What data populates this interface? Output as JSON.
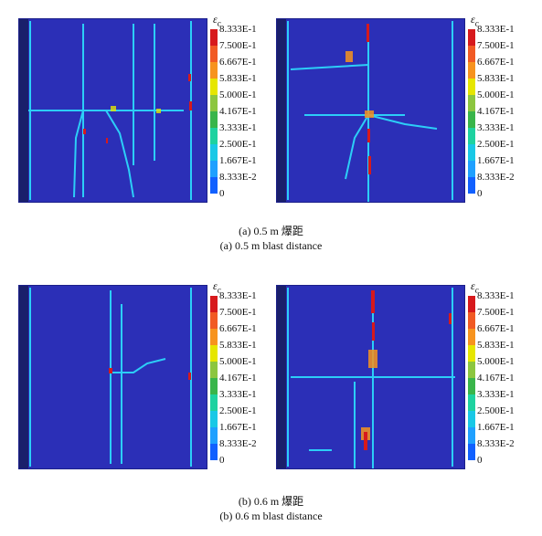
{
  "legend": {
    "symbol": "ε",
    "symbol_sub": "c",
    "labels": [
      "8.333E-1",
      "7.500E-1",
      "6.667E-1",
      "5.833E-1",
      "5.000E-1",
      "4.167E-1",
      "3.333E-1",
      "2.500E-1",
      "1.667E-1",
      "8.333E-2",
      "0"
    ],
    "colors": [
      "#d7191c",
      "#f15a24",
      "#f7931e",
      "#e6e600",
      "#8cc63f",
      "#39b54a",
      "#1ed2a0",
      "#19c8e6",
      "#1fa0ff",
      "#1160ff"
    ]
  },
  "captions": {
    "a_cn": "(a) 0.5 m 爆距",
    "a_en": "(a) 0.5 m blast distance",
    "b_cn": "(b) 0.6 m 爆距",
    "b_en": "(b) 0.6 m blast distance"
  }
}
